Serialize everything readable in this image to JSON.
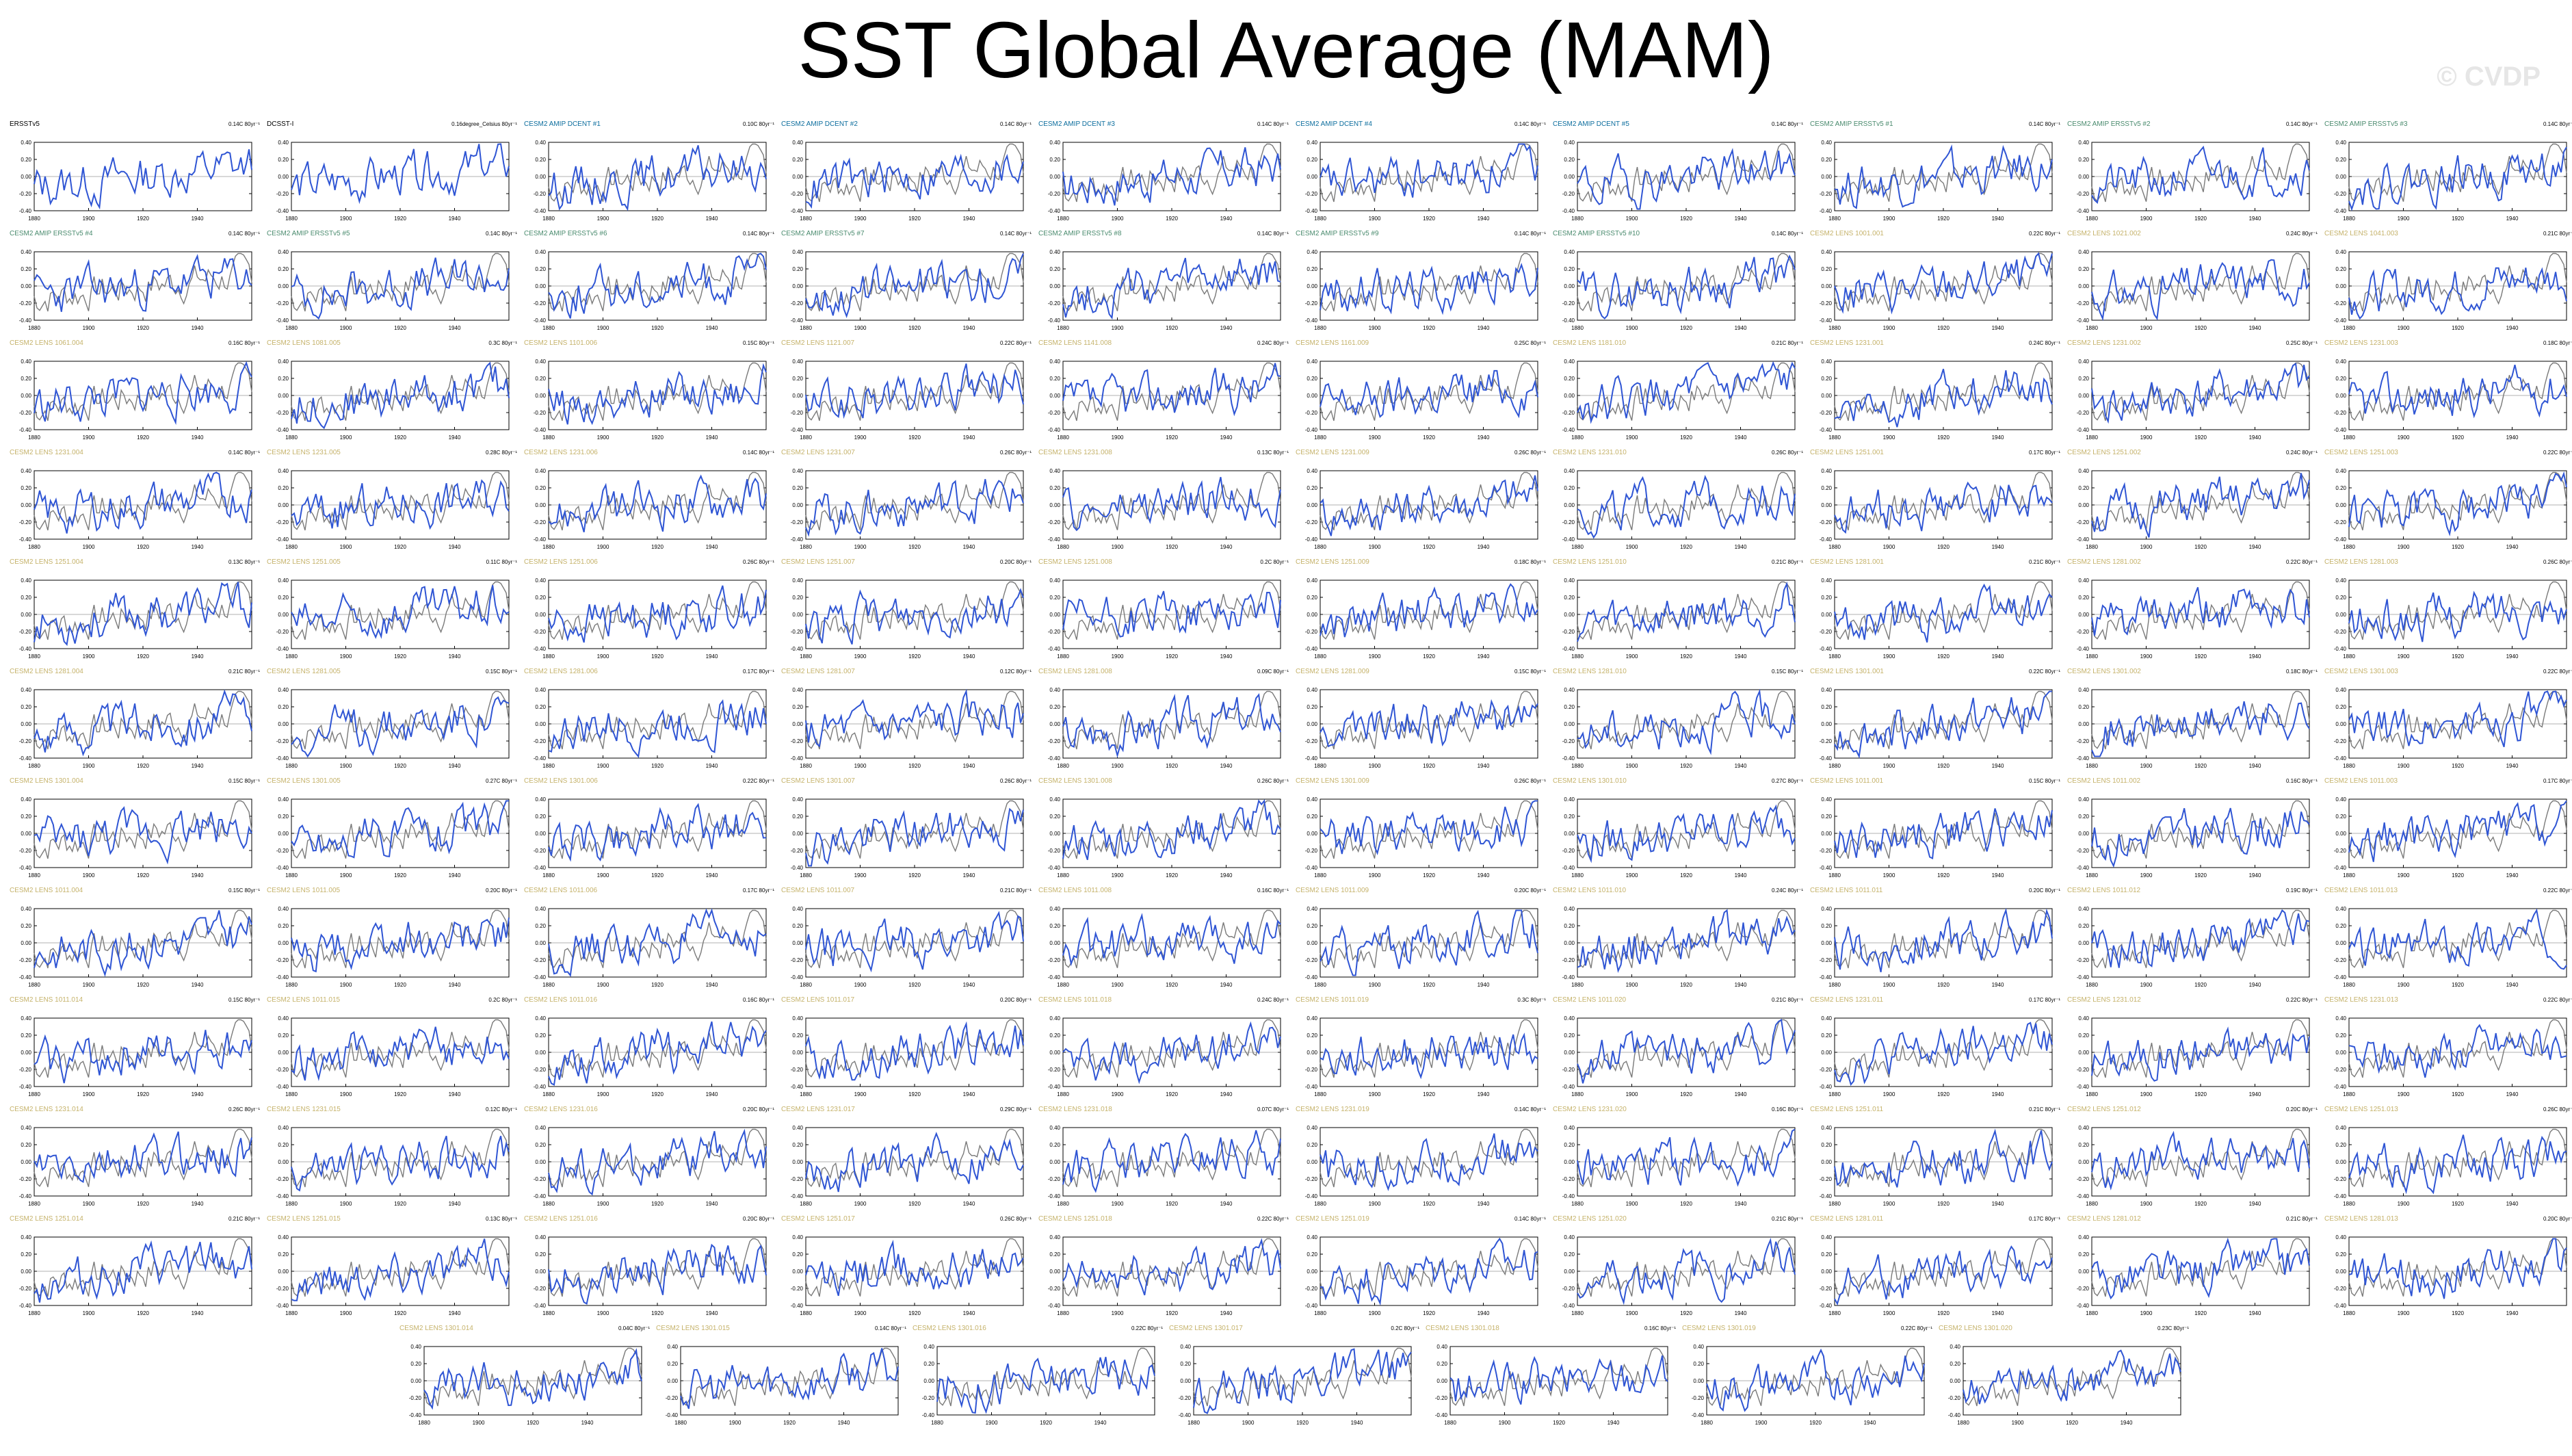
{
  "title": "SST Global Average (MAM)",
  "watermark": "© CVDP",
  "colors": {
    "model_line": "#2f55d4",
    "obs_line": "#7a7a7a",
    "zero_line": "#b0b0b0",
    "obs_title": "#000000",
    "amip_title": "#0d6e9e",
    "ersst_title": "#4a8b6e",
    "lens_title": "#c5b26a"
  },
  "chart_data": {
    "type": "line",
    "layout": "panel grid: 11 rows x 10 columns plus a final row of 7 panels",
    "xlim": [
      1880,
      1960
    ],
    "xticks": [
      "1880",
      "1900",
      "1920",
      "1940"
    ],
    "ylim": [
      -0.4,
      0.4
    ],
    "yticks": [
      "0.40",
      "0.20",
      "0.00",
      "-0.20",
      "-0.40"
    ],
    "panels": [
      {
        "title": "ERSSTv5",
        "trend": "0.14C 80yr⁻¹",
        "group": "obs"
      },
      {
        "title": "DCSST-I",
        "trend": "0.16degree_Celsius 80yr⁻¹",
        "group": "obs"
      },
      {
        "title": "CESM2 AMIP DCENT #1",
        "trend": "0.10C 80yr⁻¹",
        "group": "amip"
      },
      {
        "title": "CESM2 AMIP DCENT #2",
        "trend": "0.14C 80yr⁻¹",
        "group": "amip"
      },
      {
        "title": "CESM2 AMIP DCENT #3",
        "trend": "0.14C 80yr⁻¹",
        "group": "amip"
      },
      {
        "title": "CESM2 AMIP DCENT #4",
        "trend": "0.14C 80yr⁻¹",
        "group": "amip"
      },
      {
        "title": "CESM2 AMIP DCENT #5",
        "trend": "0.14C 80yr⁻¹",
        "group": "amip"
      },
      {
        "title": "CESM2 AMIP ERSSTv5 #1",
        "trend": "0.14C 80yr⁻¹",
        "group": "ersst"
      },
      {
        "title": "CESM2 AMIP ERSSTv5 #2",
        "trend": "0.14C 80yr⁻¹",
        "group": "ersst"
      },
      {
        "title": "CESM2 AMIP ERSSTv5 #3",
        "trend": "0.14C 80yr⁻¹",
        "group": "ersst"
      },
      {
        "title": "CESM2 AMIP ERSSTv5 #4",
        "trend": "0.14C 80yr⁻¹",
        "group": "ersst"
      },
      {
        "title": "CESM2 AMIP ERSSTv5 #5",
        "trend": "0.14C 80yr⁻¹",
        "group": "ersst"
      },
      {
        "title": "CESM2 AMIP ERSSTv5 #6",
        "trend": "0.14C 80yr⁻¹",
        "group": "ersst"
      },
      {
        "title": "CESM2 AMIP ERSSTv5 #7",
        "trend": "0.14C 80yr⁻¹",
        "group": "ersst"
      },
      {
        "title": "CESM2 AMIP ERSSTv5 #8",
        "trend": "0.14C 80yr⁻¹",
        "group": "ersst"
      },
      {
        "title": "CESM2 AMIP ERSSTv5 #9",
        "trend": "0.14C 80yr⁻¹",
        "group": "ersst"
      },
      {
        "title": "CESM2 AMIP ERSSTv5 #10",
        "trend": "0.14C 80yr⁻¹",
        "group": "ersst"
      },
      {
        "title": "CESM2 LENS 1001.001",
        "trend": "0.22C 80yr⁻¹",
        "group": "lens"
      },
      {
        "title": "CESM2 LENS 1021.002",
        "trend": "0.24C 80yr⁻¹",
        "group": "lens"
      },
      {
        "title": "CESM2 LENS 1041.003",
        "trend": "0.21C 80yr⁻¹",
        "group": "lens"
      },
      {
        "title": "CESM2 LENS 1061.004",
        "trend": "0.16C 80yr⁻¹",
        "group": "lens"
      },
      {
        "title": "CESM2 LENS 1081.005",
        "trend": "0.3C 80yr⁻¹",
        "group": "lens"
      },
      {
        "title": "CESM2 LENS 1101.006",
        "trend": "0.15C 80yr⁻¹",
        "group": "lens"
      },
      {
        "title": "CESM2 LENS 1121.007",
        "trend": "0.22C 80yr⁻¹",
        "group": "lens"
      },
      {
        "title": "CESM2 LENS 1141.008",
        "trend": "0.24C 80yr⁻¹",
        "group": "lens"
      },
      {
        "title": "CESM2 LENS 1161.009",
        "trend": "0.25C 80yr⁻¹",
        "group": "lens"
      },
      {
        "title": "CESM2 LENS 1181.010",
        "trend": "0.21C 80yr⁻¹",
        "group": "lens"
      },
      {
        "title": "CESM2 LENS 1231.001",
        "trend": "0.24C 80yr⁻¹",
        "group": "lens"
      },
      {
        "title": "CESM2 LENS 1231.002",
        "trend": "0.25C 80yr⁻¹",
        "group": "lens"
      },
      {
        "title": "CESM2 LENS 1231.003",
        "trend": "0.18C 80yr⁻¹",
        "group": "lens"
      },
      {
        "title": "CESM2 LENS 1231.004",
        "trend": "0.14C 80yr⁻¹",
        "group": "lens"
      },
      {
        "title": "CESM2 LENS 1231.005",
        "trend": "0.28C 80yr⁻¹",
        "group": "lens"
      },
      {
        "title": "CESM2 LENS 1231.006",
        "trend": "0.14C 80yr⁻¹",
        "group": "lens"
      },
      {
        "title": "CESM2 LENS 1231.007",
        "trend": "0.26C 80yr⁻¹",
        "group": "lens"
      },
      {
        "title": "CESM2 LENS 1231.008",
        "trend": "0.13C 80yr⁻¹",
        "group": "lens"
      },
      {
        "title": "CESM2 LENS 1231.009",
        "trend": "0.26C 80yr⁻¹",
        "group": "lens"
      },
      {
        "title": "CESM2 LENS 1231.010",
        "trend": "0.26C 80yr⁻¹",
        "group": "lens"
      },
      {
        "title": "CESM2 LENS 1251.001",
        "trend": "0.17C 80yr⁻¹",
        "group": "lens"
      },
      {
        "title": "CESM2 LENS 1251.002",
        "trend": "0.24C 80yr⁻¹",
        "group": "lens"
      },
      {
        "title": "CESM2 LENS 1251.003",
        "trend": "0.22C 80yr⁻¹",
        "group": "lens"
      },
      {
        "title": "CESM2 LENS 1251.004",
        "trend": "0.13C 80yr⁻¹",
        "group": "lens"
      },
      {
        "title": "CESM2 LENS 1251.005",
        "trend": "0.11C 80yr⁻¹",
        "group": "lens"
      },
      {
        "title": "CESM2 LENS 1251.006",
        "trend": "0.26C 80yr⁻¹",
        "group": "lens"
      },
      {
        "title": "CESM2 LENS 1251.007",
        "trend": "0.20C 80yr⁻¹",
        "group": "lens"
      },
      {
        "title": "CESM2 LENS 1251.008",
        "trend": "0.2C 80yr⁻¹",
        "group": "lens"
      },
      {
        "title": "CESM2 LENS 1251.009",
        "trend": "0.18C 80yr⁻¹",
        "group": "lens"
      },
      {
        "title": "CESM2 LENS 1251.010",
        "trend": "0.21C 80yr⁻¹",
        "group": "lens"
      },
      {
        "title": "CESM2 LENS 1281.001",
        "trend": "0.21C 80yr⁻¹",
        "group": "lens"
      },
      {
        "title": "CESM2 LENS 1281.002",
        "trend": "0.22C 80yr⁻¹",
        "group": "lens"
      },
      {
        "title": "CESM2 LENS 1281.003",
        "trend": "0.26C 80yr⁻¹",
        "group": "lens"
      },
      {
        "title": "CESM2 LENS 1281.004",
        "trend": "0.21C 80yr⁻¹",
        "group": "lens"
      },
      {
        "title": "CESM2 LENS 1281.005",
        "trend": "0.15C 80yr⁻¹",
        "group": "lens"
      },
      {
        "title": "CESM2 LENS 1281.006",
        "trend": "0.17C 80yr⁻¹",
        "group": "lens"
      },
      {
        "title": "CESM2 LENS 1281.007",
        "trend": "0.12C 80yr⁻¹",
        "group": "lens"
      },
      {
        "title": "CESM2 LENS 1281.008",
        "trend": "0.09C 80yr⁻¹",
        "group": "lens"
      },
      {
        "title": "CESM2 LENS 1281.009",
        "trend": "0.15C 80yr⁻¹",
        "group": "lens"
      },
      {
        "title": "CESM2 LENS 1281.010",
        "trend": "0.15C 80yr⁻¹",
        "group": "lens"
      },
      {
        "title": "CESM2 LENS 1301.001",
        "trend": "0.22C 80yr⁻¹",
        "group": "lens"
      },
      {
        "title": "CESM2 LENS 1301.002",
        "trend": "0.18C 80yr⁻¹",
        "group": "lens"
      },
      {
        "title": "CESM2 LENS 1301.003",
        "trend": "0.22C 80yr⁻¹",
        "group": "lens"
      },
      {
        "title": "CESM2 LENS 1301.004",
        "trend": "0.15C 80yr⁻¹",
        "group": "lens"
      },
      {
        "title": "CESM2 LENS 1301.005",
        "trend": "0.27C 80yr⁻¹",
        "group": "lens"
      },
      {
        "title": "CESM2 LENS 1301.006",
        "trend": "0.22C 80yr⁻¹",
        "group": "lens"
      },
      {
        "title": "CESM2 LENS 1301.007",
        "trend": "0.26C 80yr⁻¹",
        "group": "lens"
      },
      {
        "title": "CESM2 LENS 1301.008",
        "trend": "0.26C 80yr⁻¹",
        "group": "lens"
      },
      {
        "title": "CESM2 LENS 1301.009",
        "trend": "0.26C 80yr⁻¹",
        "group": "lens"
      },
      {
        "title": "CESM2 LENS 1301.010",
        "trend": "0.27C 80yr⁻¹",
        "group": "lens"
      },
      {
        "title": "CESM2 LENS 1011.001",
        "trend": "0.15C 80yr⁻¹",
        "group": "lens"
      },
      {
        "title": "CESM2 LENS 1011.002",
        "trend": "0.16C 80yr⁻¹",
        "group": "lens"
      },
      {
        "title": "CESM2 LENS 1011.003",
        "trend": "0.17C 80yr⁻¹",
        "group": "lens"
      },
      {
        "title": "CESM2 LENS 1011.004",
        "trend": "0.15C 80yr⁻¹",
        "group": "lens"
      },
      {
        "title": "CESM2 LENS 1011.005",
        "trend": "0.20C 80yr⁻¹",
        "group": "lens"
      },
      {
        "title": "CESM2 LENS 1011.006",
        "trend": "0.17C 80yr⁻¹",
        "group": "lens"
      },
      {
        "title": "CESM2 LENS 1011.007",
        "trend": "0.21C 80yr⁻¹",
        "group": "lens"
      },
      {
        "title": "CESM2 LENS 1011.008",
        "trend": "0.16C 80yr⁻¹",
        "group": "lens"
      },
      {
        "title": "CESM2 LENS 1011.009",
        "trend": "0.20C 80yr⁻¹",
        "group": "lens"
      },
      {
        "title": "CESM2 LENS 1011.010",
        "trend": "0.24C 80yr⁻¹",
        "group": "lens"
      },
      {
        "title": "CESM2 LENS 1011.011",
        "trend": "0.20C 80yr⁻¹",
        "group": "lens"
      },
      {
        "title": "CESM2 LENS 1011.012",
        "trend": "0.19C 80yr⁻¹",
        "group": "lens"
      },
      {
        "title": "CESM2 LENS 1011.013",
        "trend": "0.22C 80yr⁻¹",
        "group": "lens"
      },
      {
        "title": "CESM2 LENS 1011.014",
        "trend": "0.15C 80yr⁻¹",
        "group": "lens"
      },
      {
        "title": "CESM2 LENS 1011.015",
        "trend": "0.2C 80yr⁻¹",
        "group": "lens"
      },
      {
        "title": "CESM2 LENS 1011.016",
        "trend": "0.16C 80yr⁻¹",
        "group": "lens"
      },
      {
        "title": "CESM2 LENS 1011.017",
        "trend": "0.20C 80yr⁻¹",
        "group": "lens"
      },
      {
        "title": "CESM2 LENS 1011.018",
        "trend": "0.24C 80yr⁻¹",
        "group": "lens"
      },
      {
        "title": "CESM2 LENS 1011.019",
        "trend": "0.3C 80yr⁻¹",
        "group": "lens"
      },
      {
        "title": "CESM2 LENS 1011.020",
        "trend": "0.21C 80yr⁻¹",
        "group": "lens"
      },
      {
        "title": "CESM2 LENS 1231.011",
        "trend": "0.17C 80yr⁻¹",
        "group": "lens"
      },
      {
        "title": "CESM2 LENS 1231.012",
        "trend": "0.22C 80yr⁻¹",
        "group": "lens"
      },
      {
        "title": "CESM2 LENS 1231.013",
        "trend": "0.22C 80yr⁻¹",
        "group": "lens"
      },
      {
        "title": "CESM2 LENS 1231.014",
        "trend": "0.26C 80yr⁻¹",
        "group": "lens"
      },
      {
        "title": "CESM2 LENS 1231.015",
        "trend": "0.12C 80yr⁻¹",
        "group": "lens"
      },
      {
        "title": "CESM2 LENS 1231.016",
        "trend": "0.20C 80yr⁻¹",
        "group": "lens"
      },
      {
        "title": "CESM2 LENS 1231.017",
        "trend": "0.29C 80yr⁻¹",
        "group": "lens"
      },
      {
        "title": "CESM2 LENS 1231.018",
        "trend": "0.07C 80yr⁻¹",
        "group": "lens"
      },
      {
        "title": "CESM2 LENS 1231.019",
        "trend": "0.14C 80yr⁻¹",
        "group": "lens"
      },
      {
        "title": "CESM2 LENS 1231.020",
        "trend": "0.16C 80yr⁻¹",
        "group": "lens"
      },
      {
        "title": "CESM2 LENS 1251.011",
        "trend": "0.21C 80yr⁻¹",
        "group": "lens"
      },
      {
        "title": "CESM2 LENS 1251.012",
        "trend": "0.20C 80yr⁻¹",
        "group": "lens"
      },
      {
        "title": "CESM2 LENS 1251.013",
        "trend": "0.26C 80yr⁻¹",
        "group": "lens"
      },
      {
        "title": "CESM2 LENS 1251.014",
        "trend": "0.21C 80yr⁻¹",
        "group": "lens"
      },
      {
        "title": "CESM2 LENS 1251.015",
        "trend": "0.13C 80yr⁻¹",
        "group": "lens"
      },
      {
        "title": "CESM2 LENS 1251.016",
        "trend": "0.20C 80yr⁻¹",
        "group": "lens"
      },
      {
        "title": "CESM2 LENS 1251.017",
        "trend": "0.26C 80yr⁻¹",
        "group": "lens"
      },
      {
        "title": "CESM2 LENS 1251.018",
        "trend": "0.22C 80yr⁻¹",
        "group": "lens"
      },
      {
        "title": "CESM2 LENS 1251.019",
        "trend": "0.14C 80yr⁻¹",
        "group": "lens"
      },
      {
        "title": "CESM2 LENS 1251.020",
        "trend": "0.21C 80yr⁻¹",
        "group": "lens"
      },
      {
        "title": "CESM2 LENS 1281.011",
        "trend": "0.17C 80yr⁻¹",
        "group": "lens"
      },
      {
        "title": "CESM2 LENS 1281.012",
        "trend": "0.21C 80yr⁻¹",
        "group": "lens"
      },
      {
        "title": "CESM2 LENS 1281.013",
        "trend": "0.20C 80yr⁻¹",
        "group": "lens"
      },
      {
        "title": "CESM2 LENS 1301.014",
        "trend": "0.04C 80yr⁻¹",
        "group": "lens"
      },
      {
        "title": "CESM2 LENS 1301.015",
        "trend": "0.14C 80yr⁻¹",
        "group": "lens"
      },
      {
        "title": "CESM2 LENS 1301.016",
        "trend": "0.22C 80yr⁻¹",
        "group": "lens"
      },
      {
        "title": "CESM2 LENS 1301.017",
        "trend": "0.2C 80yr⁻¹",
        "group": "lens"
      },
      {
        "title": "CESM2 LENS 1301.018",
        "trend": "0.16C 80yr⁻¹",
        "group": "lens"
      },
      {
        "title": "CESM2 LENS 1301.019",
        "trend": "0.22C 80yr⁻¹",
        "group": "lens"
      },
      {
        "title": "CESM2 LENS 1301.020",
        "trend": "0.23C 80yr⁻¹",
        "group": "lens"
      }
    ]
  }
}
